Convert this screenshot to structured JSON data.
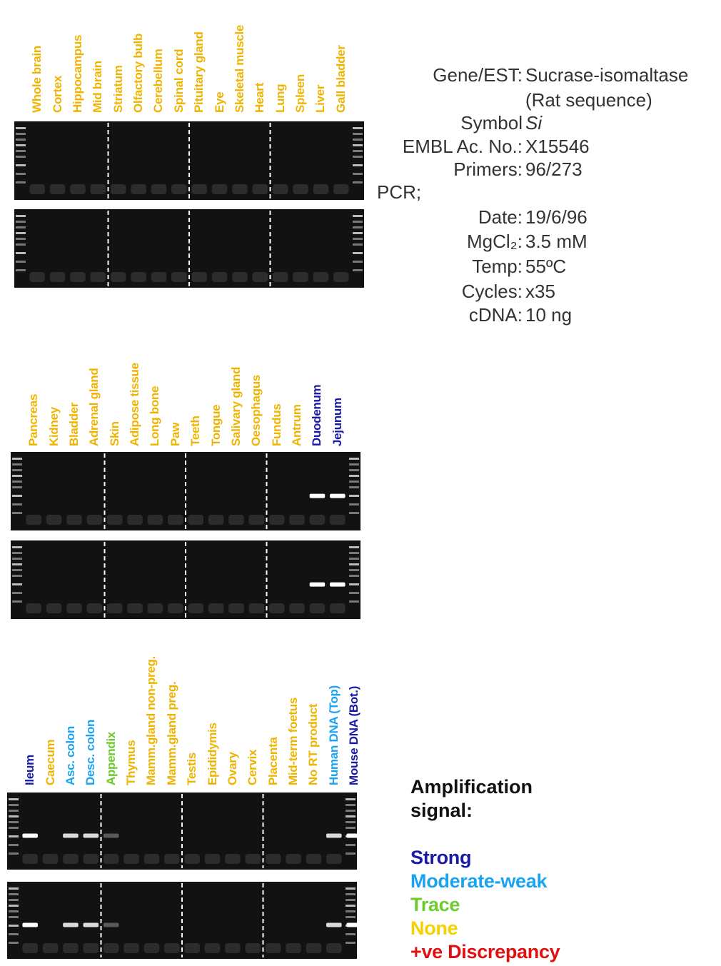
{
  "info": {
    "rows": [
      {
        "key": "Gene/EST:",
        "value": "Sucrase-isomaltase"
      },
      {
        "value": "(Rat sequence)"
      },
      {
        "key": "Symbol",
        "value": "Si",
        "italic": true
      },
      {
        "key": "EMBL Ac. No.:",
        "value": "X15546"
      },
      {
        "key": "Primers:",
        "value": "96/273"
      },
      {
        "heading": "PCR;"
      },
      {
        "key": "Date:",
        "value": "19/6/96"
      },
      {
        "key": "MgCl₂:",
        "value": "3.5 mM"
      },
      {
        "key": "Temp:",
        "value": "55ºC"
      },
      {
        "key": "Cycles:",
        "value": "x35"
      },
      {
        "key": "cDNA:",
        "value": "10 ng"
      }
    ]
  },
  "panels": [
    {
      "lanes": [
        {
          "label": "Whole brain",
          "color": "#f0b400"
        },
        {
          "label": "Cortex",
          "color": "#f0b400"
        },
        {
          "label": "Hippocampus",
          "color": "#f0b400"
        },
        {
          "label": "Mid brain",
          "color": "#f0b400"
        },
        {
          "label": "Striatum",
          "color": "#f0b400"
        },
        {
          "label": "Olfactory bulb",
          "color": "#f0b400"
        },
        {
          "label": "Cerebellum",
          "color": "#f0b400"
        },
        {
          "label": "Spinal cord",
          "color": "#f0b400"
        },
        {
          "label": "Pituitary gland",
          "color": "#f0b400"
        },
        {
          "label": "Eye",
          "color": "#f0b400"
        },
        {
          "label": "Skeletal muscle",
          "color": "#f0b400"
        },
        {
          "label": "Heart",
          "color": "#f0b400"
        },
        {
          "label": "Lung",
          "color": "#f0b400"
        },
        {
          "label": "Spleen",
          "color": "#f0b400"
        },
        {
          "label": "Liver",
          "color": "#f0b400"
        },
        {
          "label": "Gall bladder",
          "color": "#f0b400"
        }
      ]
    },
    {
      "lanes": [
        {
          "label": "Pancreas",
          "color": "#f0b400"
        },
        {
          "label": "Kidney",
          "color": "#f0b400"
        },
        {
          "label": "Bladder",
          "color": "#f0b400"
        },
        {
          "label": "Adrenal gland",
          "color": "#f0b400"
        },
        {
          "label": "Skin",
          "color": "#f0b400"
        },
        {
          "label": "Adipose tissue",
          "color": "#f0b400"
        },
        {
          "label": "Long bone",
          "color": "#f0b400"
        },
        {
          "label": "Paw",
          "color": "#f0b400"
        },
        {
          "label": "Teeth",
          "color": "#f0b400"
        },
        {
          "label": "Tongue",
          "color": "#f0b400"
        },
        {
          "label": "Salivary gland",
          "color": "#f0b400"
        },
        {
          "label": "Oesophagus",
          "color": "#f0b400"
        },
        {
          "label": "Fundus",
          "color": "#f0b400"
        },
        {
          "label": "Antrum",
          "color": "#f0b400"
        },
        {
          "label": "Duodenum",
          "color": "#1a1aa8"
        },
        {
          "label": "Jejunum",
          "color": "#1a1aa8"
        }
      ]
    },
    {
      "lanes": [
        {
          "label": "Ileum",
          "color": "#1a1aa8"
        },
        {
          "label": "Caecum",
          "color": "#f0b400"
        },
        {
          "label": "Asc. colon",
          "color": "#1aa3f0"
        },
        {
          "label": "Desc. colon",
          "color": "#1aa3f0"
        },
        {
          "label": "Appendix",
          "color": "#6ccc2c"
        },
        {
          "label": "Thymus",
          "color": "#f0b400"
        },
        {
          "label": "Mamm.gland non-preg.",
          "color": "#f0b400"
        },
        {
          "label": "Mamm.gland preg.",
          "color": "#f0b400"
        },
        {
          "label": "Testis",
          "color": "#f0b400"
        },
        {
          "label": "Epididymis",
          "color": "#f0b400"
        },
        {
          "label": "Ovary",
          "color": "#f0b400"
        },
        {
          "label": "Cervix",
          "color": "#f0b400"
        },
        {
          "label": "Placenta",
          "color": "#f0b400"
        },
        {
          "label": "Mid-term foetus",
          "color": "#f0b400"
        },
        {
          "label": "No RT product",
          "color": "#f0b400"
        },
        {
          "label": "Human DNA (Top)",
          "color": "#1aa3f0"
        },
        {
          "label": "Mouse DNA (Bot.)",
          "color": "#1a1aa8"
        }
      ]
    }
  ],
  "legend": {
    "title": "Amplification signal:",
    "items": [
      {
        "name": "Strong",
        "color": "#1a1aa8"
      },
      {
        "name": "Moderate-weak",
        "color": "#1aa3f0"
      },
      {
        "name": "Trace",
        "color": "#6ccc2c"
      },
      {
        "name": "None",
        "color": "#f7d000"
      },
      {
        "name": "+ve Discrepancy",
        "color": "#e01010"
      }
    ]
  }
}
